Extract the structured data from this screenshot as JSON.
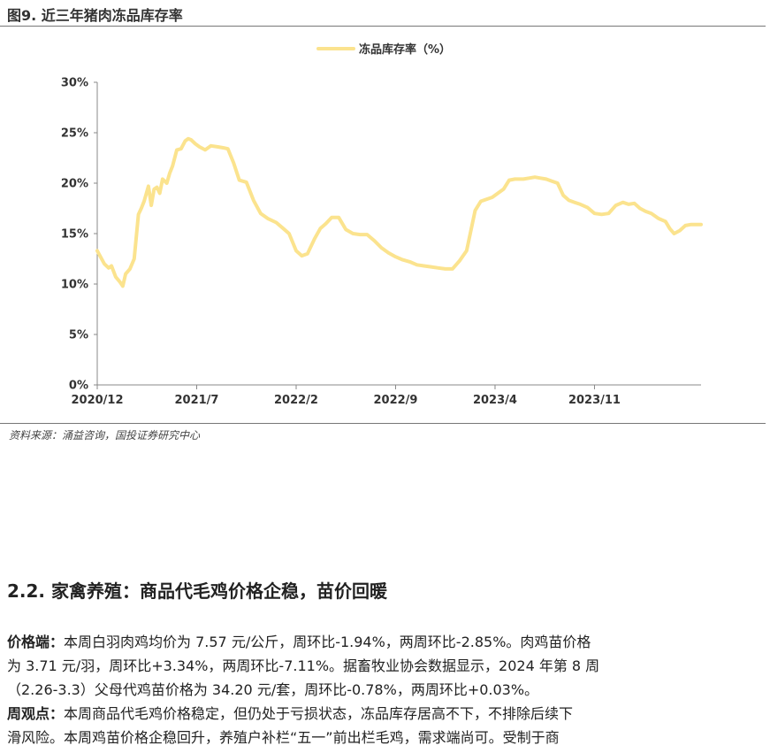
{
  "figure": {
    "title": "图9. 近三年猪肉冻品库存率",
    "source": "资料来源：涌益咨询，国投证券研究中心"
  },
  "chart_data": {
    "type": "line",
    "title": "",
    "xlabel": "",
    "ylabel": "",
    "legend_position": "top-center",
    "grid": false,
    "x_ticks": [
      "2020/12",
      "2021/7",
      "2022/2",
      "2022/9",
      "2023/4",
      "2023/11"
    ],
    "y_ticks": [
      "0%",
      "5%",
      "10%",
      "15%",
      "20%",
      "25%",
      "30%"
    ],
    "ylim": [
      0,
      30
    ],
    "xlim": [
      0,
      42.5
    ],
    "x_unit": "months since 2020/12",
    "series": [
      {
        "name": "冻品库存率（%）",
        "color": "#FBE38E",
        "x": [
          0,
          0.5,
          0.8,
          1.0,
          1.3,
          1.6,
          1.8,
          2.0,
          2.3,
          2.6,
          2.9,
          3.1,
          3.3,
          3.6,
          3.8,
          4.0,
          4.2,
          4.4,
          4.6,
          4.9,
          5.1,
          5.3,
          5.6,
          5.9,
          6.2,
          6.4,
          6.6,
          6.9,
          7.2,
          7.6,
          8.0,
          8.5,
          8.9,
          9.2,
          9.6,
          10.0,
          10.5,
          11.0,
          11.5,
          12.0,
          12.6,
          13.1,
          13.5,
          14.0,
          14.4,
          14.8,
          15.3,
          15.7,
          16.1,
          16.5,
          17.0,
          17.5,
          18.0,
          18.5,
          19.0,
          19.5,
          20.0,
          20.5,
          21.0,
          21.5,
          22.0,
          22.5,
          23.0,
          23.5,
          24.0,
          24.5,
          25.0,
          25.5,
          26.0,
          26.6,
          27.0,
          27.4,
          27.8,
          28.2,
          28.6,
          29.0,
          29.4,
          30.0,
          30.4,
          30.8,
          31.2,
          31.6,
          32.0,
          32.4,
          32.8,
          33.2,
          33.6,
          34.0,
          34.5,
          35.0,
          35.5,
          36.0,
          36.5,
          37.0,
          37.4,
          37.8,
          38.2,
          38.6,
          39.0,
          39.5,
          40.0,
          40.3,
          40.6,
          41.0,
          41.4,
          41.8,
          42.2,
          42.5
        ],
        "y": [
          13.3,
          12.0,
          11.6,
          11.8,
          10.7,
          10.2,
          9.8,
          11.0,
          11.5,
          12.5,
          16.9,
          17.5,
          18.2,
          19.7,
          17.8,
          19.4,
          19.6,
          19.0,
          20.4,
          20.0,
          21.0,
          21.7,
          23.3,
          23.4,
          24.2,
          24.4,
          24.3,
          23.9,
          23.6,
          23.3,
          23.7,
          23.6,
          23.5,
          23.4,
          22.0,
          20.3,
          20.1,
          18.3,
          17.0,
          16.5,
          16.1,
          15.5,
          15.0,
          13.3,
          12.8,
          13.0,
          14.5,
          15.5,
          16.0,
          16.6,
          16.6,
          15.4,
          15.0,
          14.9,
          14.9,
          14.3,
          13.6,
          13.1,
          12.7,
          12.4,
          12.2,
          11.9,
          11.8,
          11.7,
          11.6,
          11.5,
          11.5,
          12.3,
          13.3,
          17.3,
          18.2,
          18.4,
          18.6,
          19.0,
          19.4,
          20.3,
          20.4,
          20.4,
          20.5,
          20.6,
          20.5,
          20.4,
          20.2,
          20.0,
          18.8,
          18.3,
          18.1,
          17.9,
          17.6,
          17.0,
          16.9,
          17.0,
          17.8,
          18.1,
          17.9,
          18.0,
          17.5,
          17.2,
          17.0,
          16.5,
          16.2,
          15.5,
          15.0,
          15.3,
          15.8,
          15.9,
          15.9,
          15.9
        ]
      }
    ]
  },
  "section": {
    "title": "2.2. 家禽养殖：商品代毛鸡价格企稳，苗价回暖"
  },
  "paragraphs": [
    {
      "label": "价格端：",
      "lines": [
        "本周白羽肉鸡均价为 7.57 元/公斤，周环比-1.94%，两周环比-2.85%。肉鸡苗价格",
        "为 3.71 元/羽，周环比+3.34%，两周环比-7.11%。据畜牧业协会数据显示，2024 年第 8 周",
        "（2.26-3.3）父母代鸡苗价格为 34.20 元/套，周环比-0.78%，两周环比+0.03%。"
      ]
    },
    {
      "label": "周观点：",
      "lines": [
        "本周商品代毛鸡价格稳定，但仍处于亏损状态，冻品库存居高不下，不排除后续下",
        "滑风险。本周鸡苗价格企稳回升，养殖户补栏“五一”前出栏毛鸡，需求端尚可。受制于商"
      ]
    }
  ]
}
